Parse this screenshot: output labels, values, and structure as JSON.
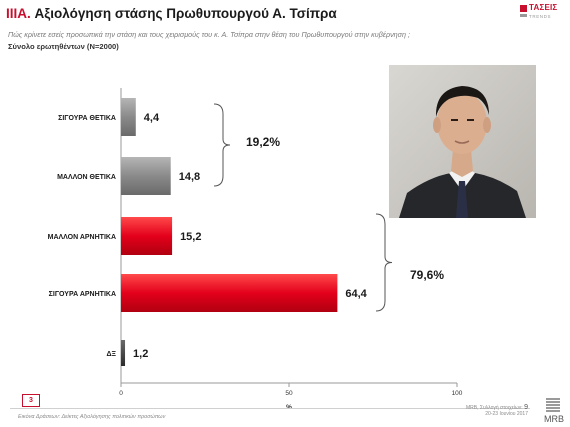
{
  "header": {
    "section": "IIIA.",
    "title": "Αξιολόγηση στάσης  Πρωθυπουργού Α. Τσίπρα",
    "question": "Πώς κρίνετε εσείς προσωπικά την στάση και τους χειρισμούς του κ. Α. Τσίπρα στην θέση του Πρωθυπουργού στην κυβέρνηση ;",
    "base": "Σύνολο ερωτηθέντων (Ν=2000)"
  },
  "logo": {
    "name": "ΤΑΣΕΙΣ",
    "sub": "TRENDS"
  },
  "chart_data": {
    "type": "bar",
    "orientation": "horizontal",
    "categories": [
      "ΣΙΓΟΥΡΑ ΘΕΤΙΚΑ",
      "ΜΑΛΛΟΝ ΘΕΤΙΚΑ",
      "ΜΑΛΛΟΝ ΑΡΝΗΤΙΚΑ",
      "ΣΙΓΟΥΡΑ ΑΡΝΗΤΙΚΑ",
      "ΔΞ"
    ],
    "values": [
      4.4,
      14.8,
      15.2,
      64.4,
      1.2
    ],
    "value_labels": [
      "4,4",
      "14,8",
      "15,2",
      "64,4",
      "1,2"
    ],
    "colors": [
      "#8c8c8c",
      "#8c8c8c",
      "#e3001b",
      "#e3001b",
      "#4a4a4a"
    ],
    "xlim": [
      0,
      100
    ],
    "xticks": [
      "0",
      "50",
      "100"
    ],
    "xlabel": "%",
    "ylabel": "",
    "title": "",
    "grid": false,
    "groups": [
      {
        "label": "19,2%",
        "members": [
          0,
          1
        ],
        "value": 19.2
      },
      {
        "label": "79,6%",
        "members": [
          2,
          3
        ],
        "value": 79.6
      }
    ]
  },
  "footer": {
    "page_box": "3",
    "source": "Εικόνα Δράσεων: Δείκτες Αξιολόγησης πολιτικών προσώπων",
    "survey": "MRB, Συλλογή στοιχείων:",
    "dates": "20-23 Ιουνίου 2017",
    "page_number": "9",
    "brand": "MRB"
  }
}
